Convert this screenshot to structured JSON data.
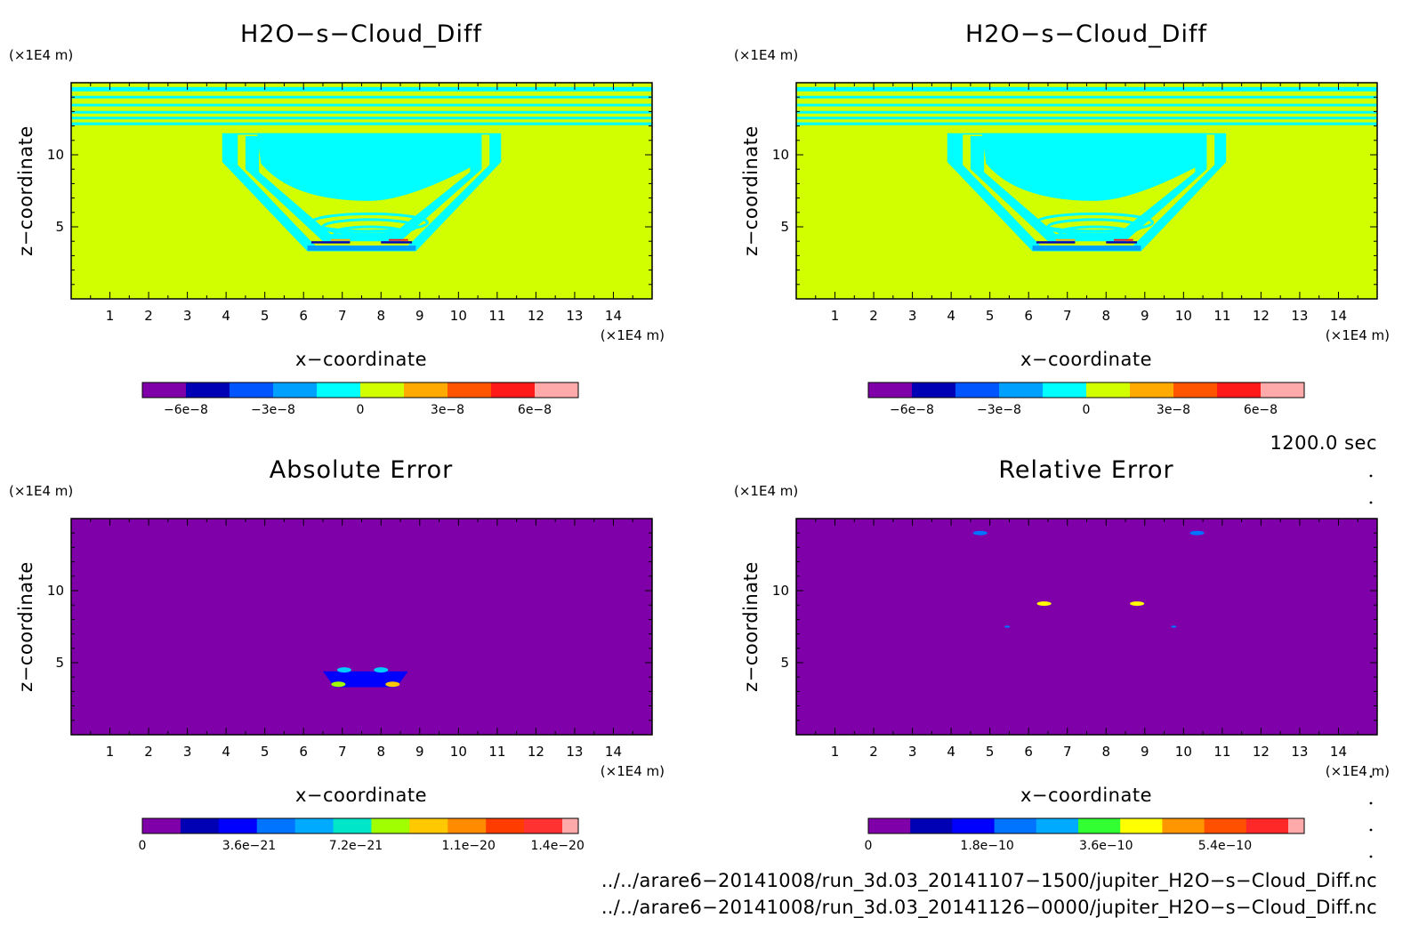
{
  "chart_data": [
    {
      "type": "heatmap",
      "title": "H2O−s−Cloud_Diff",
      "xlabel": "x−coordinate",
      "ylabel": "z−coordinate",
      "x_unit": "(×1E4 m)",
      "y_unit": "(×1E4 m)",
      "x_ticks": [
        "1",
        "2",
        "3",
        "4",
        "5",
        "6",
        "7",
        "8",
        "9",
        "10",
        "11",
        "12",
        "13",
        "14"
      ],
      "y_ticks": [
        "5",
        "10"
      ],
      "xlim": [
        0,
        15
      ],
      "ylim": [
        0,
        15
      ],
      "colorbar": {
        "colors": [
          "#7f00a8",
          "#0000b4",
          "#0055ff",
          "#00a0ff",
          "#00ffff",
          "#d2ff00",
          "#ffaa00",
          "#ff5500",
          "#ff1a1a",
          "#ffaaaa"
        ],
        "tick_labels": [
          "−6e−8",
          "−3e−8",
          "0",
          "3e−8",
          "6e−8"
        ],
        "tick_values": [
          -6e-08,
          -3e-08,
          0,
          3e-08,
          6e-08
        ],
        "range": [
          -7.5e-08,
          7.5e-08
        ]
      }
    },
    {
      "type": "heatmap",
      "title": "H2O−s−Cloud_Diff",
      "xlabel": "x−coordinate",
      "ylabel": "z−coordinate",
      "x_unit": "(×1E4 m)",
      "y_unit": "(×1E4 m)",
      "x_ticks": [
        "1",
        "2",
        "3",
        "4",
        "5",
        "6",
        "7",
        "8",
        "9",
        "10",
        "11",
        "12",
        "13",
        "14"
      ],
      "y_ticks": [
        "5",
        "10"
      ],
      "xlim": [
        0,
        15
      ],
      "ylim": [
        0,
        15
      ],
      "colorbar": {
        "colors": [
          "#7f00a8",
          "#0000b4",
          "#0055ff",
          "#00a0ff",
          "#00ffff",
          "#d2ff00",
          "#ffaa00",
          "#ff5500",
          "#ff1a1a",
          "#ffaaaa"
        ],
        "tick_labels": [
          "−6e−8",
          "−3e−8",
          "0",
          "3e−8",
          "6e−8"
        ],
        "tick_values": [
          -6e-08,
          -3e-08,
          0,
          3e-08,
          6e-08
        ],
        "range": [
          -7.5e-08,
          7.5e-08
        ]
      }
    },
    {
      "type": "heatmap",
      "title": "Absolute Error",
      "xlabel": "x−coordinate",
      "ylabel": "z−coordinate",
      "x_unit": "(×1E4 m)",
      "y_unit": "(×1E4 m)",
      "x_ticks": [
        "1",
        "2",
        "3",
        "4",
        "5",
        "6",
        "7",
        "8",
        "9",
        "10",
        "11",
        "12",
        "13",
        "14"
      ],
      "y_ticks": [
        "5",
        "10"
      ],
      "xlim": [
        0,
        15
      ],
      "ylim": [
        0,
        15
      ],
      "colorbar": {
        "colors": [
          "#7f00a8",
          "#0000b4",
          "#0000ff",
          "#0073ff",
          "#00aaff",
          "#00e6c8",
          "#a0ff00",
          "#ffc800",
          "#ff8c00",
          "#ff3c00",
          "#ff3232",
          "#ffaaaa"
        ],
        "tick_labels": [
          "0",
          "3.6e−21",
          "7.2e−21",
          "1.1e−20",
          "1.4e−20"
        ],
        "tick_values": [
          0,
          3.6e-21,
          7.2e-21,
          1.1e-20,
          1.4e-20
        ],
        "range": [
          0,
          1.47e-20
        ]
      }
    },
    {
      "type": "heatmap",
      "title": "Relative Error",
      "xlabel": "x−coordinate",
      "ylabel": "z−coordinate",
      "x_unit": "(×1E4 m)",
      "y_unit": "(×1E4 m)",
      "x_ticks": [
        "1",
        "2",
        "3",
        "4",
        "5",
        "6",
        "7",
        "8",
        "9",
        "10",
        "11",
        "12",
        "13",
        "14"
      ],
      "y_ticks": [
        "5",
        "10"
      ],
      "xlim": [
        0,
        15
      ],
      "ylim": [
        0,
        15
      ],
      "colorbar": {
        "colors": [
          "#7f00a8",
          "#0000b4",
          "#0000ff",
          "#0073ff",
          "#00aaff",
          "#32ff32",
          "#ffff00",
          "#ff9600",
          "#ff5000",
          "#ff2828",
          "#ffaaaa"
        ],
        "tick_labels": [
          "0",
          "1.8e−10",
          "3.6e−10",
          "5.4e−10"
        ],
        "tick_values": [
          0,
          1.8e-10,
          3.6e-10,
          5.4e-10
        ],
        "range": [
          0,
          6.6e-10
        ]
      }
    }
  ],
  "time_label": "1200.0 sec",
  "files": [
    "../../arare6−20141008/run_3d.03_20141107−1500/jupiter_H2O−s−Cloud_Diff.nc",
    "../../arare6−20141008/run_3d.03_20141126−0000/jupiter_H2O−s−Cloud_Diff.nc"
  ]
}
